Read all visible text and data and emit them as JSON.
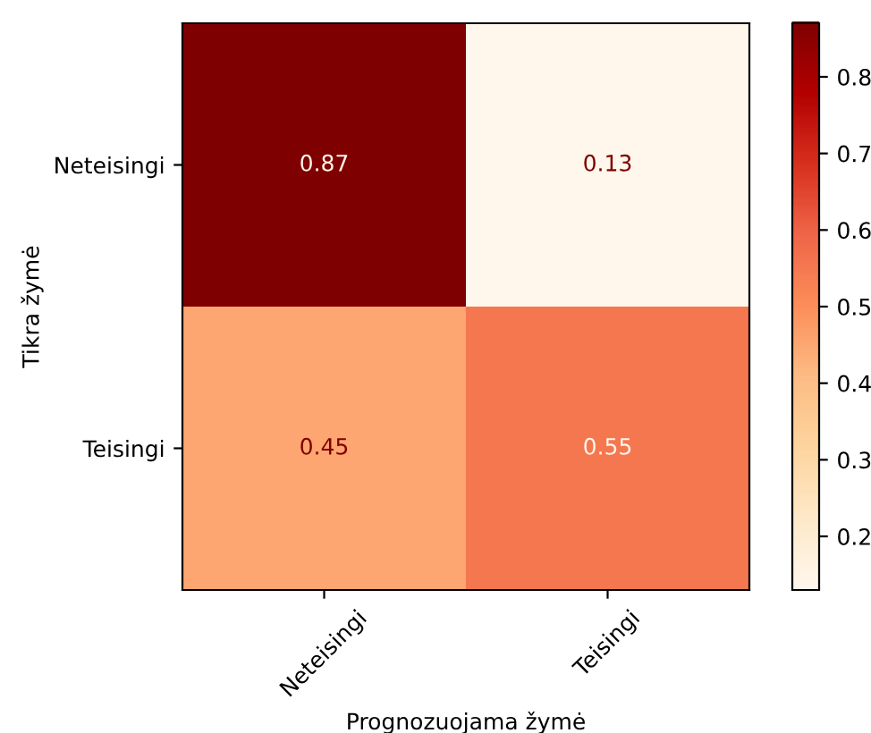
{
  "chart_data": {
    "type": "heatmap",
    "xlabel": "Prognozuojama žymė",
    "ylabel": "Tikra žymė",
    "categories": [
      "Neteisingi",
      "Teisingi"
    ],
    "y_categories": [
      "Neteisingi",
      "Teisingi"
    ],
    "cells": [
      [
        0.87,
        0.13
      ],
      [
        0.45,
        0.55
      ]
    ],
    "data_labels": true,
    "clim": [
      0.13,
      0.87
    ],
    "cticks": [
      0.2,
      0.3,
      0.4,
      0.5,
      0.6,
      0.7,
      0.8
    ]
  }
}
